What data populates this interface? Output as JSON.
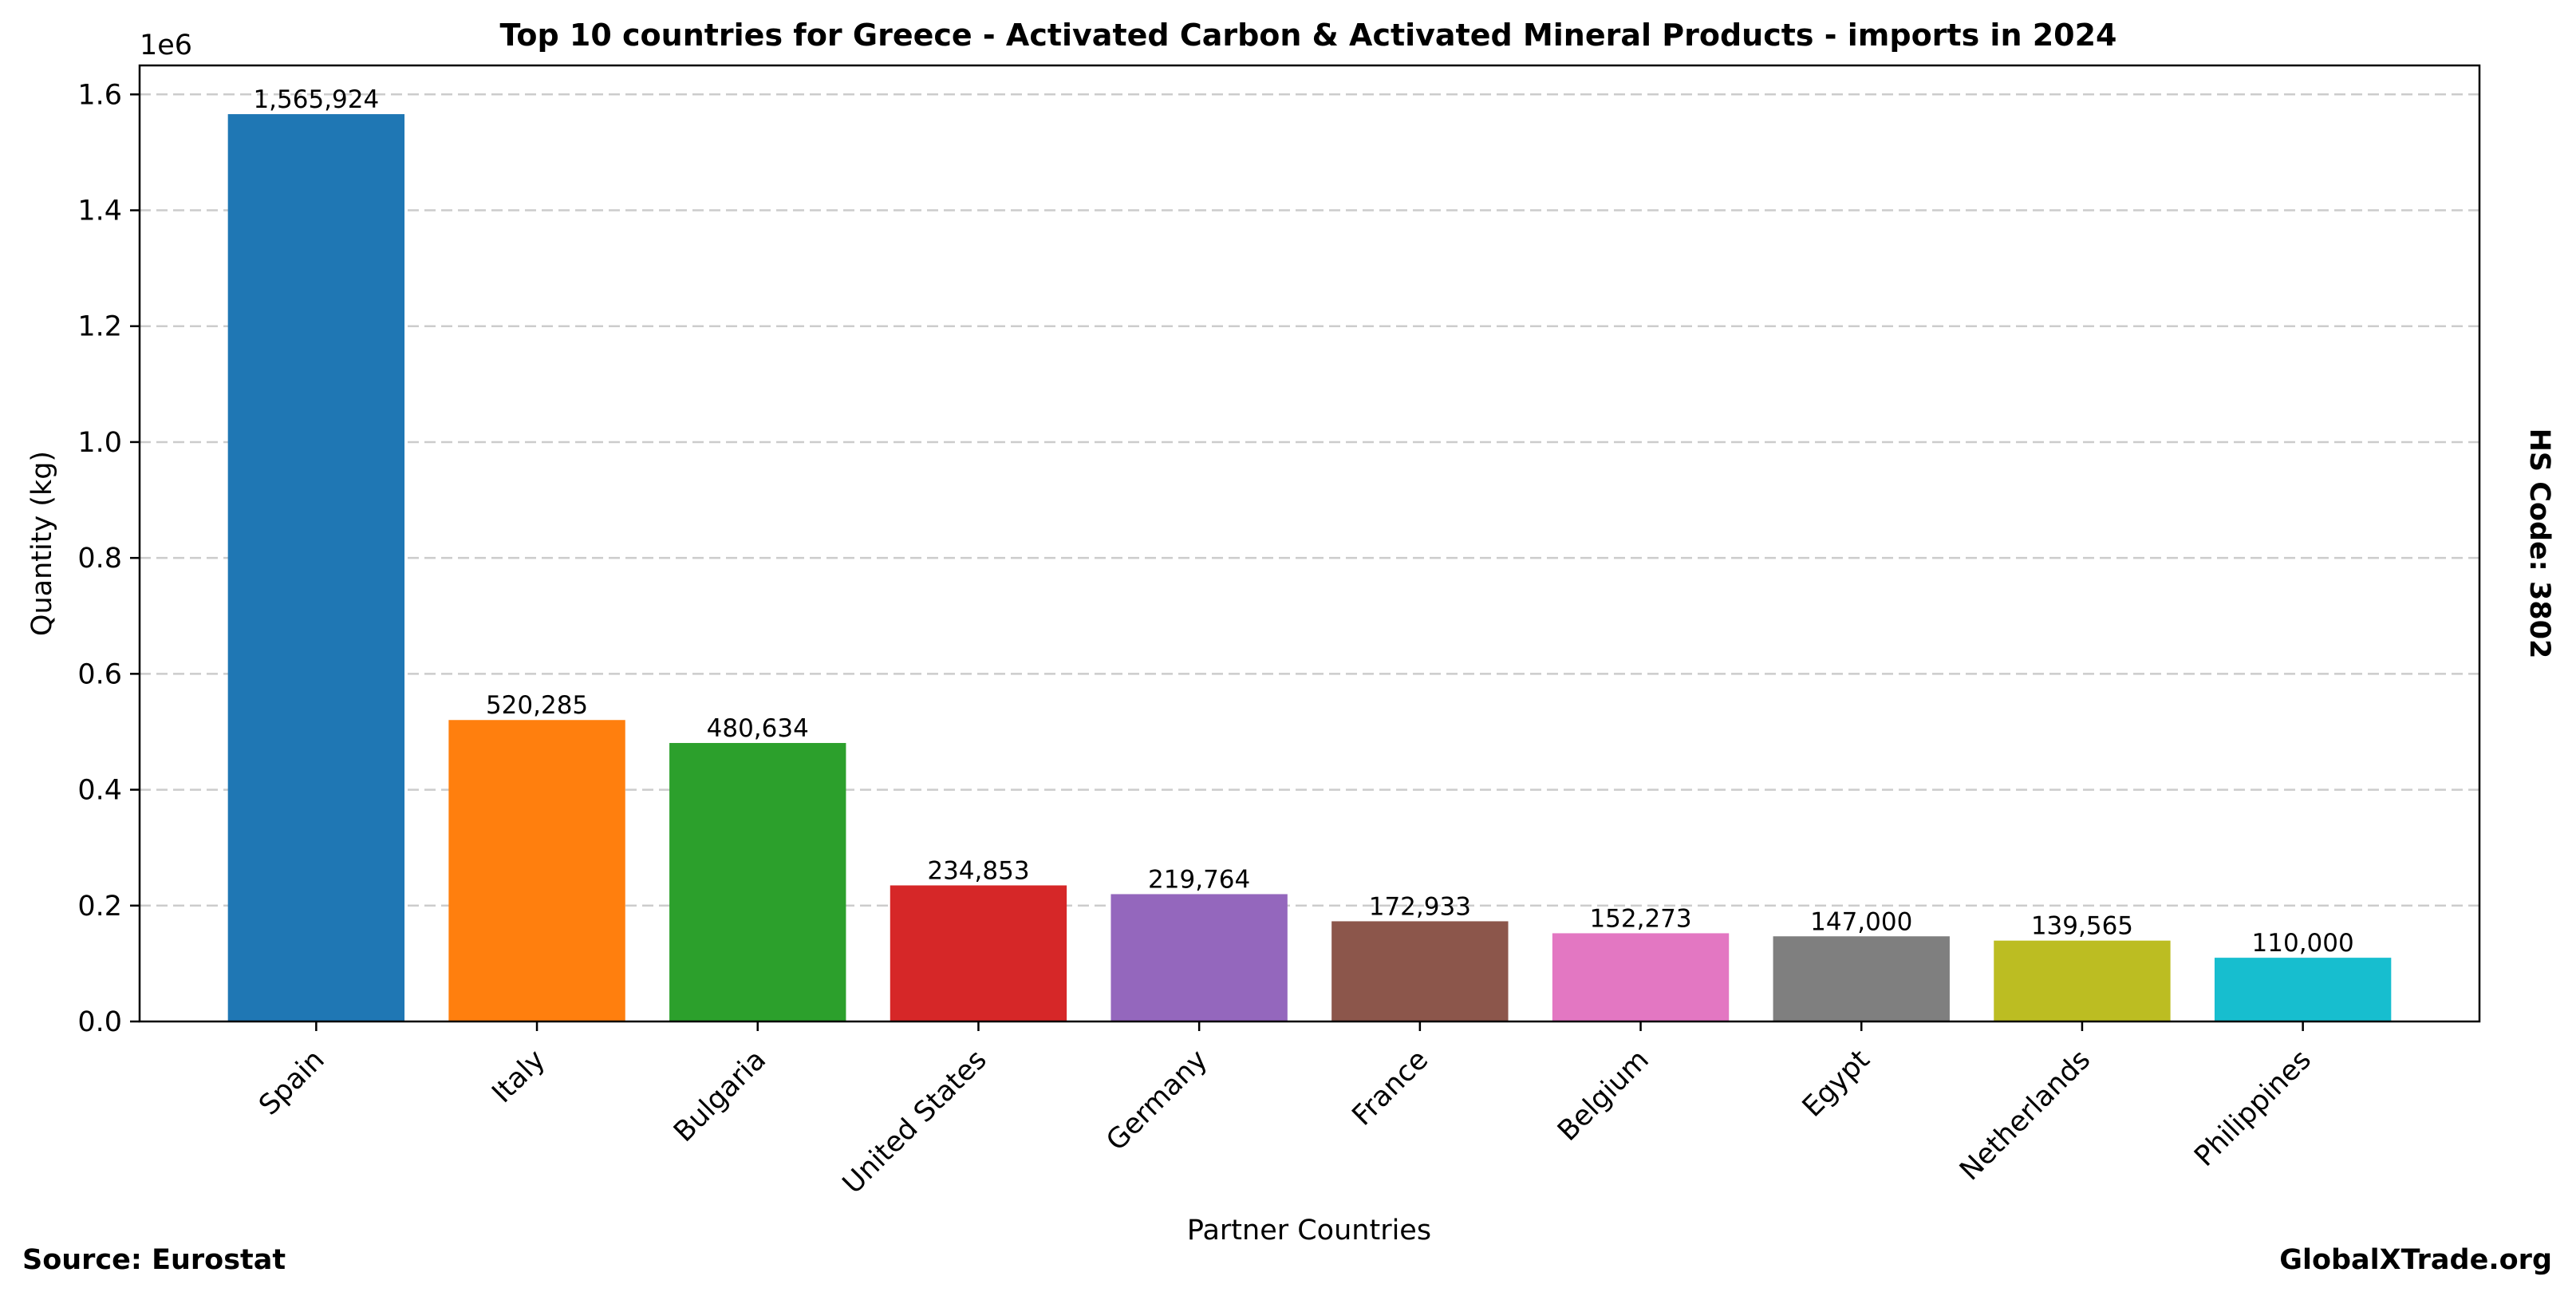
{
  "chart_data": {
    "type": "bar",
    "title": "Top 10 countries for Greece - Activated Carbon & Activated Mineral Products - imports in 2024",
    "xlabel": "Partner Countries",
    "ylabel": "Quantity (kg)",
    "y_offset_label": "1e6",
    "ylim": [
      0,
      1650000
    ],
    "yticks": [
      0,
      200000,
      400000,
      600000,
      800000,
      1000000,
      1200000,
      1400000,
      1600000
    ],
    "ytick_labels": [
      "0.0",
      "0.2",
      "0.4",
      "0.6",
      "0.8",
      "1.0",
      "1.2",
      "1.4",
      "1.6"
    ],
    "grid": "horizontal-dashed",
    "categories": [
      "Spain",
      "Italy",
      "Bulgaria",
      "United States",
      "Germany",
      "France",
      "Belgium",
      "Egypt",
      "Netherlands",
      "Philippines"
    ],
    "values": [
      1565924,
      520285,
      480634,
      234853,
      219764,
      172933,
      152273,
      147000,
      139565,
      110000
    ],
    "value_labels": [
      "1,565,924",
      "520,285",
      "480,634",
      "234,853",
      "219,764",
      "172,933",
      "152,273",
      "147,000",
      "139,565",
      "110,000"
    ],
    "colors": [
      "#1f77b4",
      "#ff7f0e",
      "#2ca02c",
      "#d62728",
      "#9467bd",
      "#8c564b",
      "#e377c2",
      "#7f7f7f",
      "#bcbd22",
      "#17becf"
    ]
  },
  "side_note": "HS Code: 3802",
  "footer": {
    "source": "Source: Eurostat",
    "site": "GlobalXTrade.org"
  }
}
